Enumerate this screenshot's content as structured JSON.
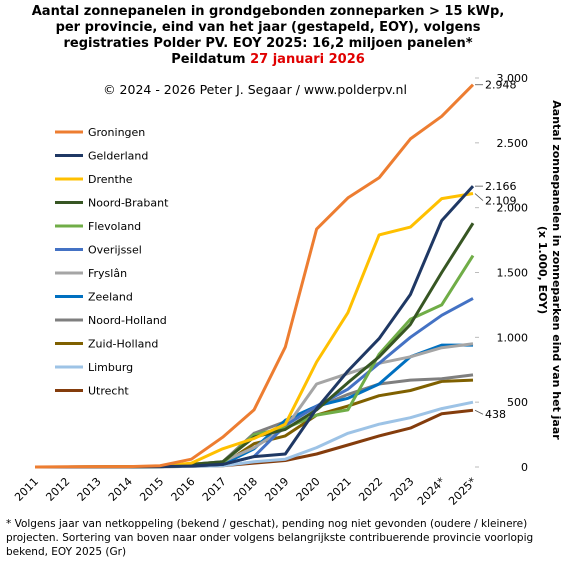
{
  "chart_data": {
    "type": "line",
    "title": [
      "Aantal zonnepanelen in grondgebonden zonneparken > 15 kWp,",
      "per provincie, eind van het jaar (gestapeld, EOY), volgens",
      "registraties Polder PV. EOY 2025: 16,2 miljoen panelen*"
    ],
    "date_label": "Peildatum",
    "date": "27 januari 2026",
    "annotation": "© 2024 - 2026 Peter J. Segaar / www.polderpv.nl",
    "y_label": [
      "Aantal zonnepanelen in zonneparken eind van het jaar",
      "(x 1.000, EOY)"
    ],
    "footnote": [
      "* Volgens jaar van netkoppeling (bekend / geschat), pending nog niet gevonden (oudere / kleinere)",
      "projecten. Sortering van boven naar onder volgens belangrijkste contribuerende provincie voorlopig",
      "bekend, EOY 2025 (Gr)"
    ],
    "categories": [
      "2011",
      "2012",
      "2013",
      "2014",
      "2015",
      "2016",
      "2017",
      "2018",
      "2019",
      "2020",
      "2021",
      "2022",
      "2023",
      "2024*",
      "2025*"
    ],
    "ylim": [
      0,
      3000
    ],
    "yticks": [
      0,
      500,
      {
        "value": 1000,
        "label": "1.000"
      },
      {
        "value": 1500,
        "label": "1.500"
      },
      {
        "value": 2000,
        "label": "2.000"
      },
      {
        "value": 2500,
        "label": "2.500"
      },
      {
        "value": 3000,
        "label": "3.000"
      }
    ],
    "series": [
      {
        "name": "Groningen",
        "color": "#ed7d31",
        "values": [
          0,
          2,
          3,
          3,
          10,
          60,
          230,
          440,
          925,
          1835,
          2075,
          2230,
          2530,
          2705,
          2948
        ],
        "value_labels": [
          null,
          null,
          null,
          null,
          null,
          null,
          null,
          null,
          null,
          null,
          null,
          null,
          null,
          null,
          "2.948"
        ]
      },
      {
        "name": "Gelderland",
        "color": "#1f3864",
        "values": [
          0,
          0,
          1,
          1,
          3,
          8,
          20,
          80,
          100,
          450,
          740,
          990,
          1330,
          1900,
          2166
        ],
        "value_labels": [
          null,
          null,
          null,
          null,
          null,
          null,
          null,
          null,
          null,
          null,
          null,
          null,
          null,
          null,
          "2.166"
        ]
      },
      {
        "name": "Drenthe",
        "color": "#ffc000",
        "values": [
          0,
          0,
          2,
          3,
          5,
          30,
          140,
          220,
          330,
          810,
          1190,
          1790,
          1850,
          2070,
          2109
        ],
        "value_labels": [
          null,
          null,
          null,
          null,
          null,
          null,
          null,
          null,
          null,
          null,
          null,
          null,
          null,
          null,
          "2.109"
        ]
      },
      {
        "name": "Noord-Brabant",
        "color": "#375623",
        "values": [
          0,
          0,
          1,
          2,
          5,
          20,
          40,
          230,
          290,
          440,
          650,
          850,
          1100,
          1500,
          1880
        ]
      },
      {
        "name": "Flevoland",
        "color": "#70ad47",
        "values": [
          0,
          0,
          0,
          1,
          3,
          10,
          30,
          250,
          300,
          400,
          440,
          870,
          1140,
          1250,
          1630
        ]
      },
      {
        "name": "Overijssel",
        "color": "#4472c4",
        "values": [
          0,
          0,
          0,
          1,
          3,
          10,
          20,
          80,
          320,
          470,
          600,
          800,
          1000,
          1170,
          1300
        ]
      },
      {
        "name": "Fryslân",
        "color": "#a5a5a5",
        "values": [
          0,
          0,
          1,
          2,
          5,
          20,
          40,
          150,
          300,
          640,
          720,
          800,
          850,
          920,
          950
        ]
      },
      {
        "name": "Zeeland",
        "color": "#0070c0",
        "values": [
          0,
          0,
          0,
          1,
          3,
          10,
          20,
          140,
          360,
          470,
          530,
          640,
          850,
          940,
          940
        ]
      },
      {
        "name": "Noord-Holland",
        "color": "#7f7f7f",
        "values": [
          0,
          0,
          1,
          2,
          5,
          20,
          40,
          260,
          350,
          460,
          560,
          640,
          670,
          680,
          710
        ]
      },
      {
        "name": "Zuid-Holland",
        "color": "#7f6000",
        "values": [
          0,
          0,
          0,
          1,
          3,
          10,
          20,
          180,
          240,
          400,
          470,
          550,
          590,
          660,
          670
        ]
      },
      {
        "name": "Limburg",
        "color": "#9dc3e6",
        "values": [
          0,
          0,
          0,
          1,
          2,
          5,
          10,
          40,
          60,
          150,
          260,
          330,
          380,
          450,
          500
        ]
      },
      {
        "name": "Utrecht",
        "color": "#843c0c",
        "values": [
          0,
          0,
          0,
          1,
          2,
          5,
          10,
          30,
          50,
          100,
          170,
          240,
          300,
          410,
          438
        ],
        "value_labels": [
          null,
          null,
          null,
          null,
          null,
          null,
          null,
          null,
          null,
          null,
          null,
          null,
          null,
          null,
          "438"
        ]
      }
    ]
  }
}
